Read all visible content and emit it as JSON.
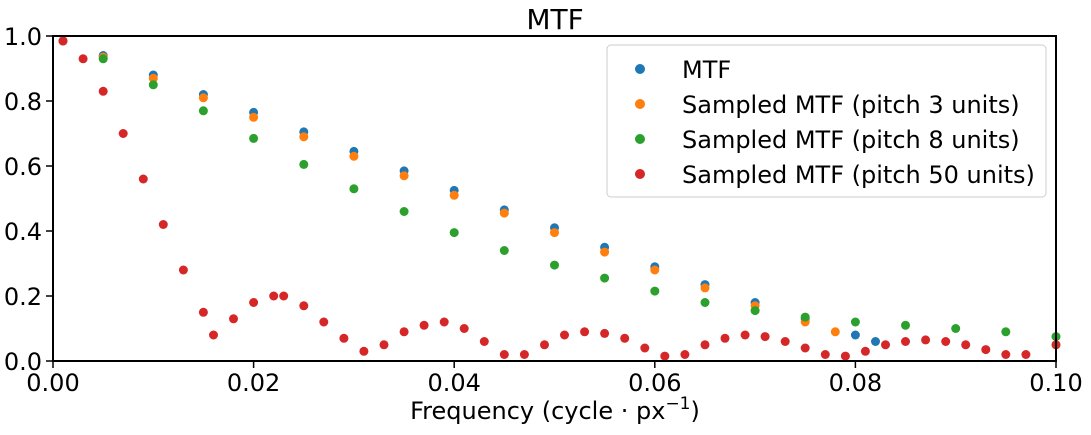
{
  "chart_data": {
    "type": "scatter",
    "title": "MTF",
    "xlabel": "Frequency (cycle · px",
    "xlabel_exponent": "−1",
    "xlabel_close": ")",
    "ylabel": "",
    "xlim": [
      0.0,
      0.1
    ],
    "ylim": [
      0.0,
      1.0
    ],
    "xticks": [
      0.0,
      0.02,
      0.04,
      0.06,
      0.08,
      0.1
    ],
    "xtick_labels": [
      "0.00",
      "0.02",
      "0.04",
      "0.06",
      "0.08",
      "0.10"
    ],
    "yticks": [
      0.0,
      0.2,
      0.4,
      0.6,
      0.8,
      1.0
    ],
    "ytick_labels": [
      "0.0",
      "0.2",
      "0.4",
      "0.6",
      "0.8",
      "1.0"
    ],
    "grid": false,
    "legend_position": "top-right",
    "series": [
      {
        "name": "MTF",
        "color": "#1f77b4",
        "x": [
          0.001,
          0.005,
          0.01,
          0.015,
          0.02,
          0.025,
          0.03,
          0.035,
          0.04,
          0.045,
          0.05,
          0.055,
          0.06,
          0.065,
          0.07,
          0.075,
          0.08,
          0.082
        ],
        "y": [
          0.985,
          0.94,
          0.88,
          0.82,
          0.765,
          0.705,
          0.645,
          0.585,
          0.525,
          0.465,
          0.41,
          0.35,
          0.29,
          0.235,
          0.18,
          0.13,
          0.08,
          0.06
        ]
      },
      {
        "name": "Sampled MTF (pitch 3 units)",
        "color": "#ff7f0e",
        "x": [
          0.001,
          0.005,
          0.01,
          0.015,
          0.02,
          0.025,
          0.03,
          0.035,
          0.04,
          0.045,
          0.05,
          0.055,
          0.06,
          0.065,
          0.07,
          0.075,
          0.078
        ],
        "y": [
          0.985,
          0.935,
          0.87,
          0.81,
          0.75,
          0.69,
          0.63,
          0.57,
          0.51,
          0.455,
          0.395,
          0.335,
          0.28,
          0.225,
          0.17,
          0.12,
          0.09
        ]
      },
      {
        "name": "Sampled MTF (pitch 8 units)",
        "color": "#2ca02c",
        "x": [
          0.001,
          0.005,
          0.01,
          0.015,
          0.02,
          0.025,
          0.03,
          0.035,
          0.04,
          0.045,
          0.05,
          0.055,
          0.06,
          0.065,
          0.07,
          0.075,
          0.08,
          0.085,
          0.09,
          0.095,
          0.1
        ],
        "y": [
          0.985,
          0.93,
          0.85,
          0.77,
          0.685,
          0.605,
          0.53,
          0.46,
          0.395,
          0.34,
          0.295,
          0.255,
          0.215,
          0.18,
          0.155,
          0.135,
          0.12,
          0.11,
          0.1,
          0.09,
          0.075
        ]
      },
      {
        "name": "Sampled MTF (pitch 50 units)",
        "color": "#d62728",
        "x": [
          0.001,
          0.003,
          0.005,
          0.007,
          0.009,
          0.011,
          0.013,
          0.015,
          0.016,
          0.018,
          0.02,
          0.022,
          0.023,
          0.025,
          0.027,
          0.029,
          0.031,
          0.033,
          0.035,
          0.037,
          0.039,
          0.041,
          0.043,
          0.045,
          0.047,
          0.049,
          0.051,
          0.053,
          0.055,
          0.057,
          0.059,
          0.061,
          0.063,
          0.065,
          0.067,
          0.069,
          0.071,
          0.073,
          0.075,
          0.077,
          0.079,
          0.081,
          0.083,
          0.085,
          0.087,
          0.089,
          0.091,
          0.093,
          0.095,
          0.097,
          0.1
        ],
        "y": [
          0.985,
          0.93,
          0.83,
          0.7,
          0.56,
          0.42,
          0.28,
          0.15,
          0.08,
          0.13,
          0.18,
          0.2,
          0.2,
          0.17,
          0.12,
          0.07,
          0.03,
          0.05,
          0.09,
          0.11,
          0.12,
          0.1,
          0.06,
          0.02,
          0.02,
          0.05,
          0.08,
          0.09,
          0.085,
          0.07,
          0.04,
          0.015,
          0.02,
          0.05,
          0.07,
          0.08,
          0.075,
          0.06,
          0.04,
          0.02,
          0.015,
          0.03,
          0.05,
          0.06,
          0.065,
          0.06,
          0.05,
          0.035,
          0.02,
          0.02,
          0.05
        ]
      }
    ]
  }
}
